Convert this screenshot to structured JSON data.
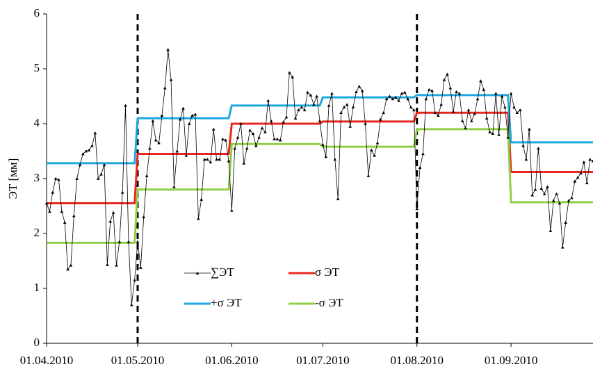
{
  "chart_data": {
    "type": "line",
    "y_label": "ЭТ [мм]",
    "x": [
      "01.04.2010",
      "02.04.2010",
      "03.04.2010",
      "04.04.2010",
      "05.04.2010",
      "06.04.2010",
      "07.04.2010",
      "08.04.2010",
      "09.04.2010",
      "10.04.2010",
      "11.04.2010",
      "12.04.2010",
      "13.04.2010",
      "14.04.2010",
      "15.04.2010",
      "16.04.2010",
      "17.04.2010",
      "18.04.2010",
      "19.04.2010",
      "20.04.2010",
      "21.04.2010",
      "22.04.2010",
      "23.04.2010",
      "24.04.2010",
      "25.04.2010",
      "26.04.2010",
      "27.04.2010",
      "28.04.2010",
      "29.04.2010",
      "30.04.2010",
      "01.05.2010",
      "02.05.2010",
      "03.05.2010",
      "04.05.2010",
      "05.05.2010",
      "06.05.2010",
      "07.05.2010",
      "08.05.2010",
      "09.05.2010",
      "10.05.2010",
      "11.05.2010",
      "12.05.2010",
      "13.05.2010",
      "14.05.2010",
      "15.05.2010",
      "16.05.2010",
      "17.05.2010",
      "18.05.2010",
      "19.05.2010",
      "20.05.2010",
      "21.05.2010",
      "22.05.2010",
      "23.05.2010",
      "24.05.2010",
      "25.05.2010",
      "26.05.2010",
      "27.05.2010",
      "28.05.2010",
      "29.05.2010",
      "30.05.2010",
      "31.05.2010",
      "01.06.2010",
      "02.06.2010",
      "03.06.2010",
      "04.06.2010",
      "05.06.2010",
      "06.06.2010",
      "07.06.2010",
      "08.06.2010",
      "09.06.2010",
      "10.06.2010",
      "11.06.2010",
      "12.06.2010",
      "13.06.2010",
      "14.06.2010",
      "15.06.2010",
      "16.06.2010",
      "17.06.2010",
      "18.06.2010",
      "19.06.2010",
      "20.06.2010",
      "21.06.2010",
      "22.06.2010",
      "23.06.2010",
      "24.06.2010",
      "25.06.2010",
      "26.06.2010",
      "27.06.2010",
      "28.06.2010",
      "29.06.2010",
      "30.06.2010",
      "01.07.2010",
      "02.07.2010",
      "03.07.2010",
      "04.07.2010",
      "05.07.2010",
      "06.07.2010",
      "07.07.2010",
      "08.07.2010",
      "09.07.2010",
      "10.07.2010",
      "11.07.2010",
      "12.07.2010",
      "13.07.2010",
      "14.07.2010",
      "15.07.2010",
      "16.07.2010",
      "17.07.2010",
      "18.07.2010",
      "19.07.2010",
      "20.07.2010",
      "21.07.2010",
      "22.07.2010",
      "23.07.2010",
      "24.07.2010",
      "25.07.2010",
      "26.07.2010",
      "27.07.2010",
      "28.07.2010",
      "29.07.2010",
      "30.07.2010",
      "31.07.2010",
      "01.08.2010",
      "02.08.2010",
      "03.08.2010",
      "04.08.2010",
      "05.08.2010",
      "06.08.2010",
      "07.08.2010",
      "08.08.2010",
      "09.08.2010",
      "10.08.2010",
      "11.08.2010",
      "12.08.2010",
      "13.08.2010",
      "14.08.2010",
      "15.08.2010",
      "16.08.2010",
      "17.08.2010",
      "18.08.2010",
      "19.08.2010",
      "20.08.2010",
      "21.08.2010",
      "22.08.2010",
      "23.08.2010",
      "24.08.2010",
      "25.08.2010",
      "26.08.2010",
      "27.08.2010",
      "28.08.2010",
      "29.08.2010",
      "30.08.2010",
      "31.08.2010",
      "01.09.2010",
      "02.09.2010",
      "03.09.2010",
      "04.09.2010",
      "05.09.2010",
      "06.09.2010",
      "07.09.2010",
      "08.09.2010",
      "09.09.2010",
      "10.09.2010",
      "11.09.2010",
      "12.09.2010",
      "13.09.2010",
      "14.09.2010",
      "15.09.2010",
      "16.09.2010",
      "17.09.2010",
      "18.09.2010",
      "19.09.2010",
      "20.09.2010",
      "21.09.2010",
      "22.09.2010",
      "23.09.2010",
      "24.09.2010",
      "25.09.2010",
      "26.09.2010",
      "27.09.2010",
      "28.09.2010"
    ],
    "series": [
      {
        "name": "∑ЭТ",
        "color": "#000000",
        "marker": "triangle",
        "values": [
          2.55,
          2.4,
          2.75,
          3.0,
          2.98,
          2.4,
          2.2,
          1.35,
          1.42,
          2.32,
          3.0,
          3.25,
          3.45,
          3.5,
          3.52,
          3.6,
          3.83,
          3.0,
          3.08,
          3.25,
          1.43,
          2.22,
          2.38,
          1.42,
          1.85,
          2.75,
          4.33,
          1.85,
          0.7,
          1.15,
          1.85,
          1.38,
          2.3,
          3.05,
          3.55,
          4.05,
          3.7,
          3.65,
          4.15,
          4.65,
          5.35,
          4.8,
          2.85,
          3.5,
          4.08,
          4.28,
          3.42,
          4.0,
          4.15,
          4.17,
          2.27,
          2.62,
          3.35,
          3.35,
          3.3,
          3.9,
          3.35,
          3.35,
          3.72,
          3.7,
          3.32,
          2.42,
          3.55,
          3.75,
          4.0,
          3.28,
          3.55,
          3.88,
          3.82,
          3.6,
          3.75,
          3.92,
          3.85,
          4.42,
          4.05,
          3.72,
          3.72,
          3.7,
          4.03,
          4.12,
          4.93,
          4.85,
          4.1,
          4.25,
          4.3,
          4.25,
          4.57,
          4.52,
          4.35,
          4.5,
          4.05,
          3.62,
          3.4,
          4.33,
          4.55,
          3.35,
          2.63,
          4.2,
          4.3,
          4.35,
          3.95,
          4.3,
          4.58,
          4.68,
          4.6,
          4.0,
          3.05,
          3.52,
          3.42,
          3.65,
          4.08,
          4.2,
          4.45,
          4.5,
          4.45,
          4.48,
          4.42,
          4.55,
          4.57,
          4.45,
          4.3,
          4.25,
          2.45,
          3.2,
          3.45,
          4.45,
          4.62,
          4.6,
          4.2,
          4.15,
          4.35,
          4.8,
          4.9,
          4.65,
          4.22,
          4.58,
          4.55,
          4.05,
          3.92,
          4.25,
          4.05,
          4.18,
          4.45,
          4.78,
          4.62,
          4.1,
          3.85,
          3.82,
          4.55,
          3.8,
          4.5,
          4.3,
          3.75,
          4.55,
          4.3,
          4.2,
          4.25,
          3.6,
          3.35,
          3.9,
          2.7,
          2.8,
          3.55,
          2.82,
          2.72,
          2.85,
          2.05,
          2.6,
          2.72,
          2.55,
          1.75,
          2.2,
          2.6,
          2.65,
          2.95,
          3.02,
          3.1,
          3.3,
          2.92,
          3.35,
          3.32
        ]
      },
      {
        "name": "σ ЭТ",
        "color": "#e8261f",
        "x": [
          "01.04.2010",
          "30.04.2010",
          "01.05.2010",
          "31.05.2010",
          "01.06.2010",
          "30.06.2010",
          "01.07.2010",
          "31.07.2010",
          "01.08.2010",
          "31.08.2010",
          "01.09.2010",
          "28.09.2010"
        ],
        "values": [
          2.55,
          2.55,
          3.45,
          3.45,
          4.0,
          4.0,
          4.04,
          4.04,
          4.2,
          4.2,
          3.12,
          3.12
        ]
      },
      {
        "name": "+σ ЭТ",
        "color": "#1ba9e0",
        "x": [
          "01.04.2010",
          "30.04.2010",
          "01.05.2010",
          "31.05.2010",
          "01.06.2010",
          "30.06.2010",
          "01.07.2010",
          "31.07.2010",
          "01.08.2010",
          "31.08.2010",
          "01.09.2010",
          "28.09.2010"
        ],
        "values": [
          3.28,
          3.28,
          4.1,
          4.1,
          4.33,
          4.33,
          4.48,
          4.48,
          4.52,
          4.52,
          3.66,
          3.66
        ]
      },
      {
        "name": "-σ ЭТ",
        "color": "#8fcf45",
        "x": [
          "01.04.2010",
          "30.04.2010",
          "01.05.2010",
          "31.05.2010",
          "01.06.2010",
          "30.06.2010",
          "01.07.2010",
          "31.07.2010",
          "01.08.2010",
          "31.08.2010",
          "01.09.2010",
          "28.09.2010"
        ],
        "values": [
          1.83,
          1.83,
          2.8,
          2.8,
          3.63,
          3.63,
          3.58,
          3.58,
          3.9,
          3.9,
          2.57,
          2.57
        ]
      }
    ],
    "vlines": [
      "01.05.2010",
      "01.08.2010"
    ],
    "xlim": [
      "01.04.2010",
      "28.09.2010"
    ],
    "xticks": [
      "01.04.2010",
      "01.05.2010",
      "01.06.2010",
      "01.07.2010",
      "01.08.2010",
      "01.09.2010"
    ],
    "ylim": [
      0,
      6
    ],
    "yticks": [
      0,
      1,
      2,
      3,
      4,
      5,
      6
    ],
    "grid": false,
    "legend": "lower center"
  }
}
